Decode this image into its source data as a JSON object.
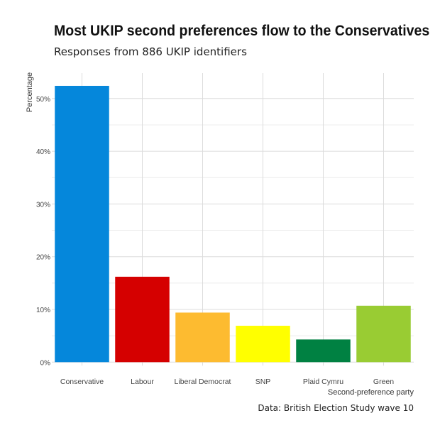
{
  "chart_data": {
    "type": "bar",
    "title": "Most UKIP second preferences flow to the Conservatives",
    "subtitle": "Responses from 886 UKIP identifiers",
    "caption": "Data: British Election Study wave 10",
    "xlabel": "Second-preference party",
    "ylabel": "Percentage",
    "categories": [
      "Conservative",
      "Labour",
      "Liberal Democrat",
      "SNP",
      "Plaid Cymru",
      "Green"
    ],
    "values": [
      52.4,
      16.2,
      9.4,
      6.9,
      4.3,
      10.7
    ],
    "colors": [
      "#0587DB",
      "#D50000",
      "#FDBB30",
      "#FFFF00",
      "#008142",
      "#99CC33"
    ],
    "ylim": [
      0,
      53
    ],
    "yticks": [
      0,
      10,
      20,
      30,
      40,
      50
    ],
    "ytick_labels": [
      "0%",
      "10%",
      "20%",
      "30%",
      "40%",
      "50%"
    ],
    "grid": true,
    "legend": "none"
  }
}
